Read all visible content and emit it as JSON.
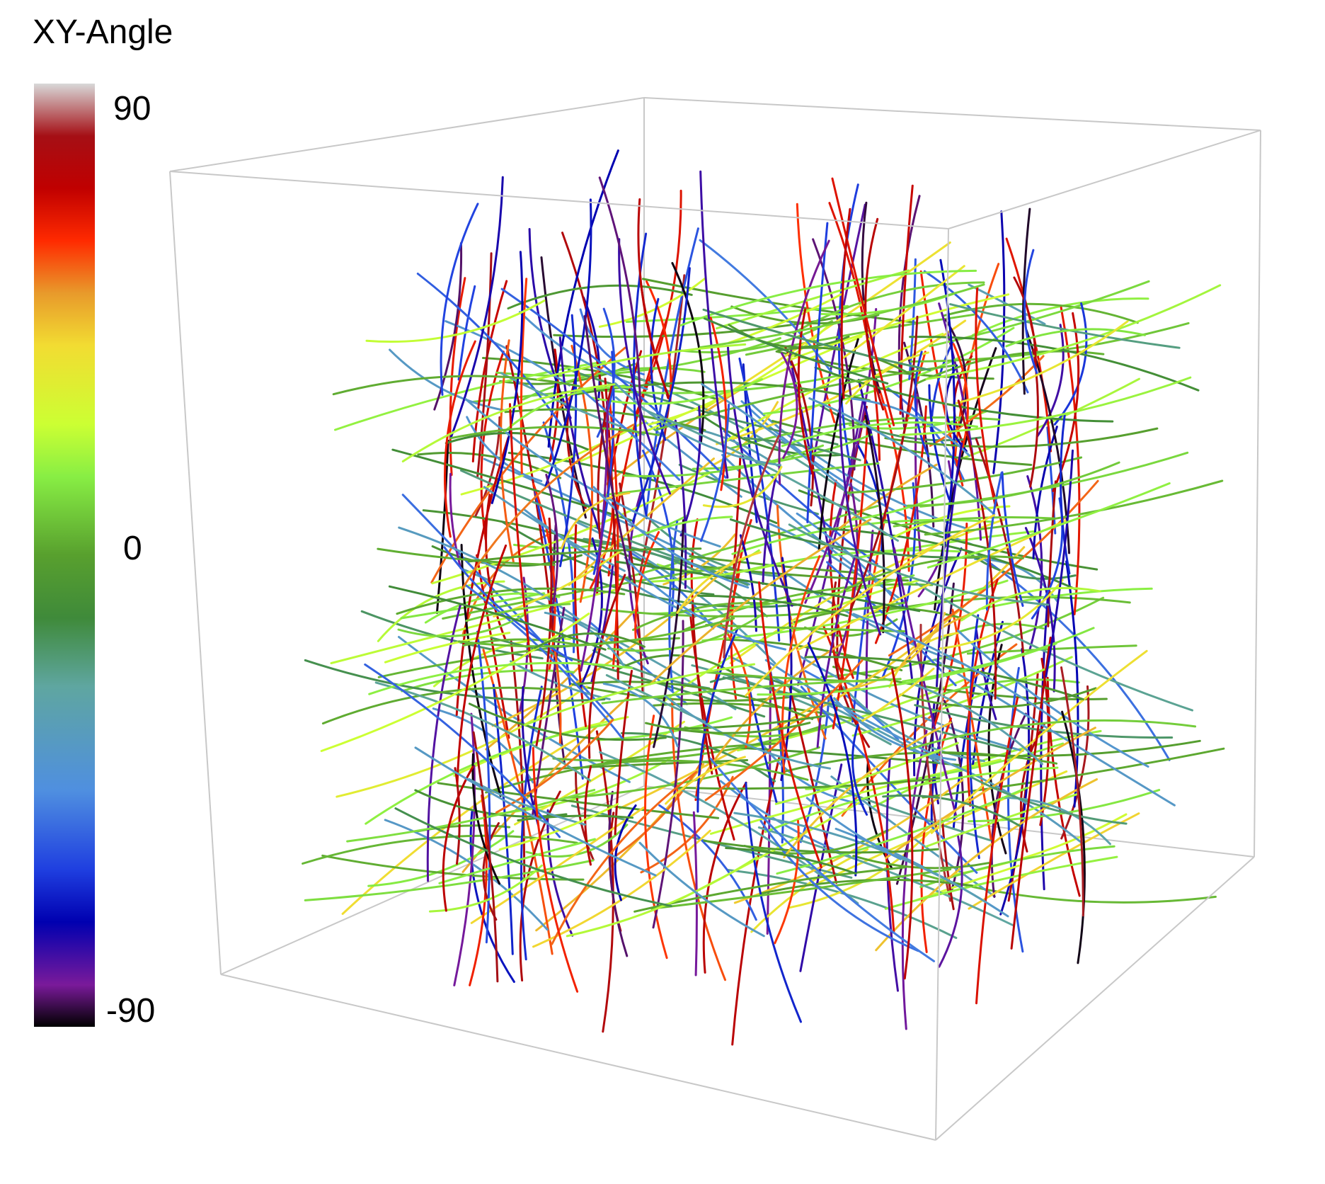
{
  "colorbar": {
    "title": "XY-Angle",
    "ticks": {
      "max": "90",
      "mid": "0",
      "min": "-90"
    },
    "range": [
      -90,
      90
    ],
    "stops": [
      {
        "value": 90,
        "color": "#d8d8d8"
      },
      {
        "value": 80,
        "color": "#a50f15"
      },
      {
        "value": 70,
        "color": "#c00000"
      },
      {
        "value": 60,
        "color": "#ff2a00"
      },
      {
        "value": 50,
        "color": "#e89a2b"
      },
      {
        "value": 40,
        "color": "#f2dc32"
      },
      {
        "value": 25,
        "color": "#ccff33"
      },
      {
        "value": 15,
        "color": "#88ee44"
      },
      {
        "value": 0,
        "color": "#58a02e"
      },
      {
        "value": -12,
        "color": "#3f8a3a"
      },
      {
        "value": -25,
        "color": "#5fa6a0"
      },
      {
        "value": -45,
        "color": "#4f8fe0"
      },
      {
        "value": -60,
        "color": "#1f3fe0"
      },
      {
        "value": -70,
        "color": "#0000b0"
      },
      {
        "value": -82,
        "color": "#7a1a9a"
      },
      {
        "value": -90,
        "color": "#000000"
      }
    ]
  },
  "plot": {
    "type": "3d-fiber-tracts",
    "box_color": "#c8c8c8",
    "fiber_angles_deg": [
      75,
      60,
      40,
      20,
      10,
      5,
      -5,
      -20,
      -35,
      -55,
      -70,
      -85
    ]
  }
}
